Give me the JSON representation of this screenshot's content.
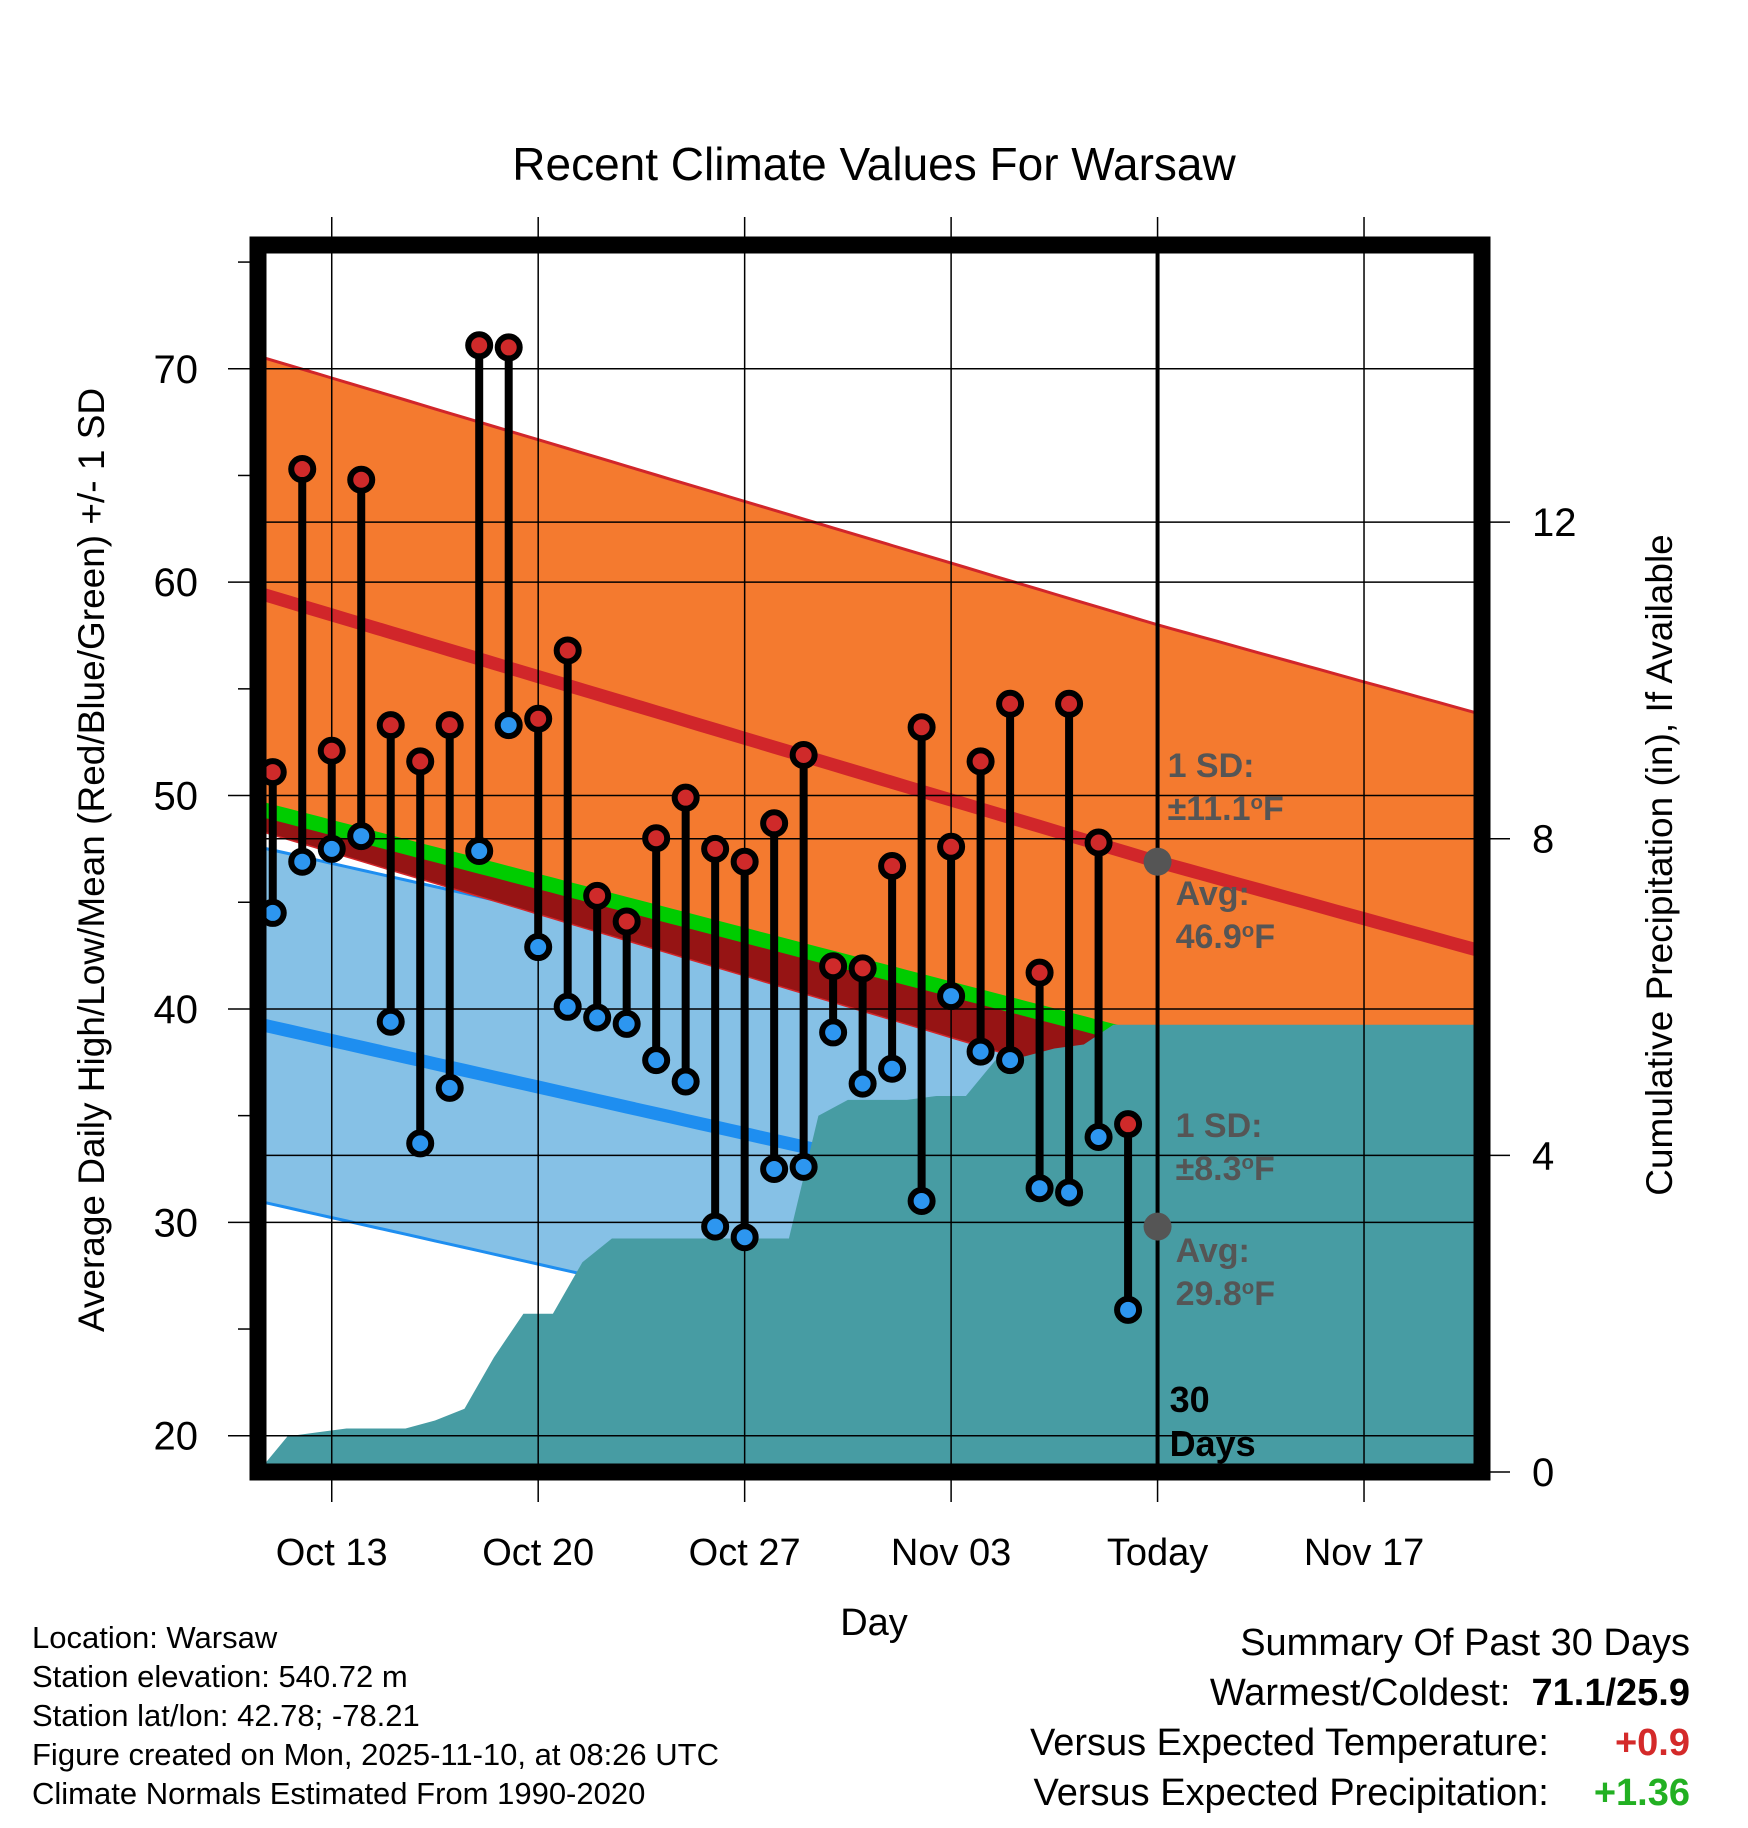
{
  "chart_data": {
    "type": "line",
    "title": "Recent Climate Values For Warsaw",
    "xlabel": "Day",
    "ylabel": "Average Daily High/Low/Mean (Red/Blue/Green) +/- 1 SD",
    "y2label": "Cumulative Precipitation (in), If Available",
    "ylim": [
      18.3,
      75.8
    ],
    "y2lim": [
      0,
      15.5
    ],
    "yticks": [
      20,
      30,
      40,
      50,
      60,
      70
    ],
    "y2ticks": [
      0,
      4,
      8,
      12
    ],
    "xlim": [
      0,
      41.5
    ],
    "xticks": [
      {
        "day": 2.5,
        "label": "Oct 13"
      },
      {
        "day": 9.5,
        "label": "Oct 20"
      },
      {
        "day": 16.5,
        "label": "Oct 27"
      },
      {
        "day": 23.5,
        "label": "Nov 03"
      },
      {
        "day": 30.5,
        "label": "Today"
      },
      {
        "day": 37.5,
        "label": "Nov 17"
      }
    ],
    "highs": [
      51.1,
      65.3,
      52.1,
      64.8,
      53.3,
      51.6,
      53.3,
      71.1,
      71.0,
      53.6,
      56.8,
      45.3,
      44.1,
      48.0,
      49.9,
      47.5,
      46.9,
      48.7,
      51.9,
      42.0,
      41.9,
      46.7,
      53.2,
      47.6,
      51.6,
      54.3,
      41.7,
      54.3,
      47.8,
      34.6
    ],
    "lows": [
      44.5,
      46.9,
      47.5,
      48.1,
      39.4,
      33.7,
      36.3,
      47.4,
      53.3,
      42.9,
      40.1,
      39.6,
      39.3,
      37.6,
      36.6,
      29.8,
      29.3,
      32.5,
      32.6,
      38.9,
      36.5,
      37.2,
      31.0,
      40.6,
      38.0,
      37.6,
      31.6,
      31.4,
      34.0,
      25.9
    ],
    "normal_high": {
      "start": 59.5,
      "today": 46.9,
      "end": 42.7
    },
    "normal_high_sd": 11.1,
    "normal_low": {
      "start": 39.3,
      "today": 29.8,
      "end": 26.6
    },
    "normal_low_sd": 8.3,
    "normal_mean": {
      "start": 49.4,
      "today": 38.4,
      "end": 34.7
    },
    "precip_cumulative": [
      0.0,
      0.45,
      0.5,
      0.55,
      0.55,
      0.55,
      0.65,
      0.8,
      1.45,
      2.0,
      2.0,
      2.65,
      2.95,
      2.95,
      2.95,
      2.95,
      2.95,
      2.95,
      2.95,
      4.5,
      4.7,
      4.7,
      4.7,
      4.75,
      4.75,
      5.2,
      5.25,
      5.35,
      5.4,
      5.65,
      5.65
    ],
    "precip_final": 5.65
  },
  "annotations": {
    "high_sd_line1": "1 SD:",
    "high_sd_line2": "±11.1",
    "low_sd_line1": "1 SD:",
    "low_sd_line2": "±8.3",
    "deg_sup": "o",
    "unit_f": "F",
    "high_avg_line1": "Avg:",
    "high_avg_line2": "46.9",
    "low_avg_line1": "Avg:",
    "low_avg_line2": "29.8",
    "days_line1": "30",
    "days_line2": "Days"
  },
  "footer": {
    "location": "Location: Warsaw",
    "elevation": "Station elevation: 540.72 m",
    "latlon": "Station lat/lon: 42.78; -78.21",
    "created": "Figure created on Mon, 2025-11-10, at 08:26 UTC",
    "normals": "Climate Normals Estimated From 1990-2020"
  },
  "summary": {
    "title": "Summary Of Past 30 Days",
    "warmest_coldest_label": "Warmest/Coldest:",
    "warmest_coldest_value": "71.1/25.9",
    "temp_label": "Versus Expected Temperature:",
    "temp_value": "+0.9",
    "temp_color": "#d42a2a",
    "precip_label": "Versus Expected Precipitation:",
    "precip_value": "+1.36",
    "precip_color": "#22b022"
  },
  "colors": {
    "high_band": "#f47a2f",
    "high_line": "#d1262a",
    "low_band": "#86c1e6",
    "low_line": "#1e8ef0",
    "mean_line": "#00cc00",
    "below_mean_fill": "#961414",
    "precip_fill": "#479ca3",
    "high_dot": "#cf2a2a",
    "low_dot": "#2d96f0",
    "annotation_text": "#555555",
    "today_dot": "#555555"
  }
}
